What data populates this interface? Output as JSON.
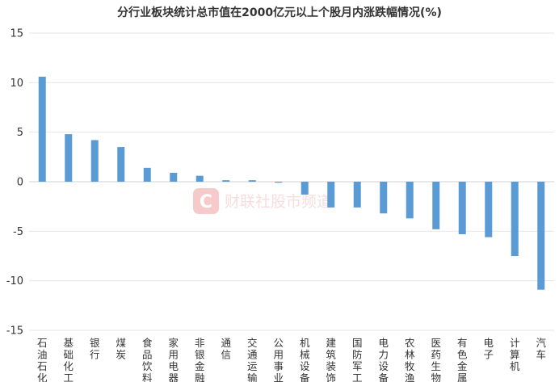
{
  "chart_data": {
    "type": "bar",
    "title": "分行业板块统计总市值在2000亿元以上个股月内涨跌幅情况(%)",
    "xlabel": "",
    "ylabel": "",
    "ylim": [
      -15,
      15
    ],
    "yticks": [
      15,
      10,
      5,
      0,
      -5,
      -10,
      -15
    ],
    "grid": true,
    "legend": "none",
    "bar_color": "#5b9bd5",
    "categories": [
      "石油石化",
      "基础化工",
      "银行",
      "煤炭",
      "食品饮料",
      "家用电器",
      "非银金融",
      "通信",
      "交通运输",
      "公用事业",
      "机械设备",
      "建筑装饰",
      "国防军工",
      "电力设备",
      "农林牧渔",
      "医药生物",
      "有色金属",
      "电子",
      "计算机",
      "汽车"
    ],
    "values": [
      10.6,
      4.8,
      4.2,
      3.5,
      1.4,
      0.9,
      0.6,
      0.15,
      0.15,
      -0.1,
      -1.3,
      -2.6,
      -2.6,
      -3.2,
      -3.7,
      -4.8,
      -5.3,
      -5.6,
      -7.5,
      -10.9
    ]
  },
  "watermark": {
    "logo_letter": "C",
    "text": "财联社股市频道",
    "color": "#e05050"
  }
}
